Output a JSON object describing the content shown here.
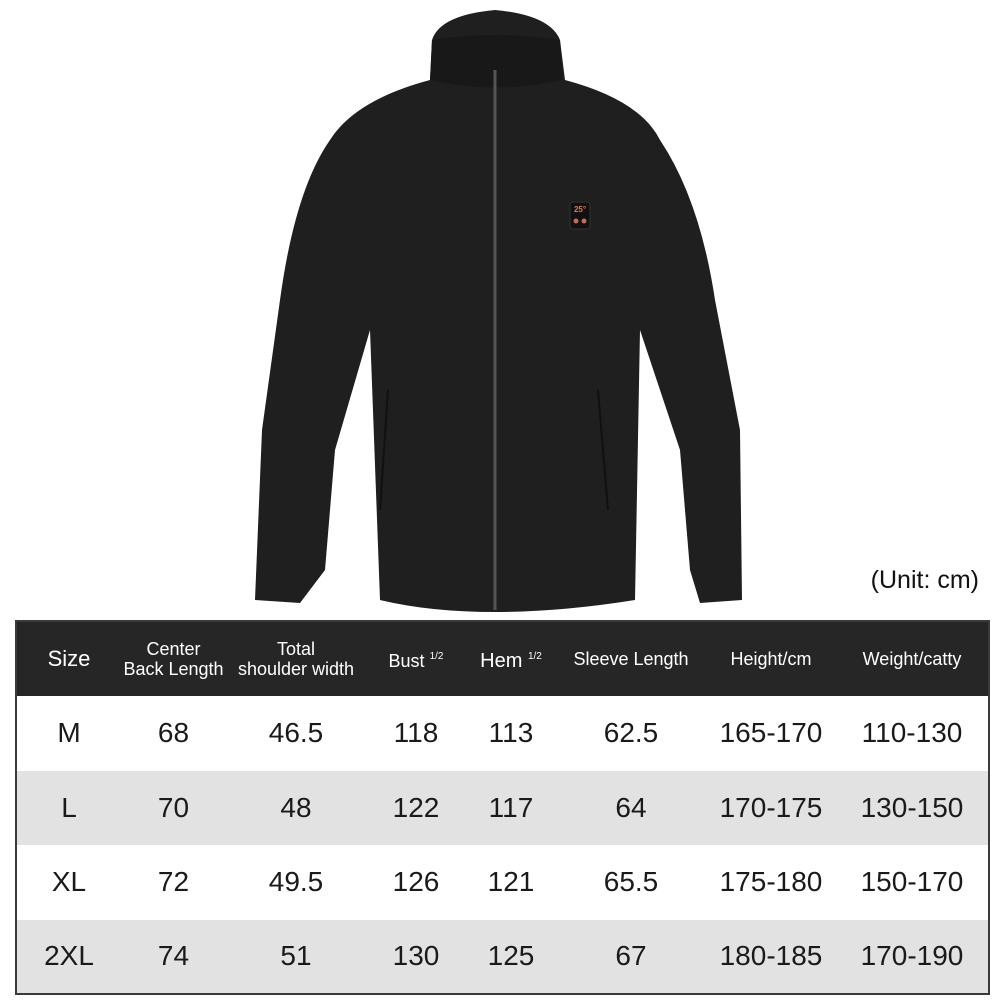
{
  "unit_note": "(Unit: cm)",
  "product": {
    "image": "black fleece heated jacket with stand collar and full zip",
    "badge_display": "25°"
  },
  "colors": {
    "header_bg": "#262626",
    "stripe": "#e2e2e2",
    "jacket": "#1f1f1f"
  },
  "table": {
    "headers": [
      {
        "line1": "Size",
        "line2": ""
      },
      {
        "line1": "Center",
        "line2": "Back Length"
      },
      {
        "line1": "Total",
        "line2": "shoulder width"
      },
      {
        "line1": "Bust",
        "sup": "1/2"
      },
      {
        "line1": "Hem",
        "sup": "1/2"
      },
      {
        "line1": "Sleeve Length",
        "line2": ""
      },
      {
        "line1": "Height/cm",
        "line2": ""
      },
      {
        "line1": "Weight/catty",
        "line2": ""
      }
    ],
    "rows": [
      [
        "M",
        "68",
        "46.5",
        "118",
        "113",
        "62.5",
        "165-170",
        "110-130"
      ],
      [
        "L",
        "70",
        "48",
        "122",
        "117",
        "64",
        "170-175",
        "130-150"
      ],
      [
        "XL",
        "72",
        "49.5",
        "126",
        "121",
        "65.5",
        "175-180",
        "150-170"
      ],
      [
        "2XL",
        "74",
        "51",
        "130",
        "125",
        "67",
        "180-185",
        "170-190"
      ]
    ]
  }
}
